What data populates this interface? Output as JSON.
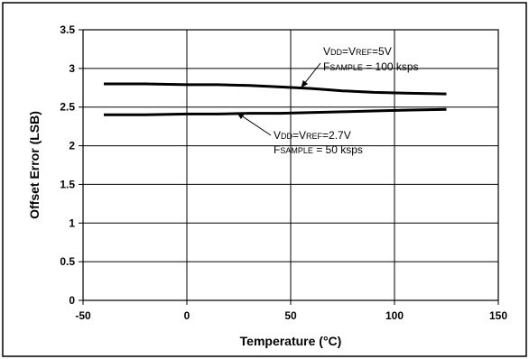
{
  "chart_data": {
    "type": "line",
    "title": "",
    "xlabel": "Temperature (°C)",
    "ylabel": "Offset Error (LSB)",
    "xlim": [
      -50,
      150
    ],
    "ylim": [
      0,
      3.5
    ],
    "x_ticks": [
      -50,
      0,
      50,
      100,
      150
    ],
    "y_ticks": [
      0,
      0.5,
      1,
      1.5,
      2,
      2.5,
      3,
      3.5
    ],
    "x_tick_labels": [
      "-50",
      "0",
      "50",
      "100",
      "150"
    ],
    "y_tick_labels": [
      "0",
      "0.5",
      "1",
      "1.5",
      "2",
      "2.5",
      "3",
      "3.5"
    ],
    "grid": true,
    "series": [
      {
        "name": "VDD=VREF=5V, FSAMPLE = 100 ksps",
        "x": [
          -40,
          -20,
          0,
          15,
          30,
          45,
          60,
          75,
          90,
          105,
          125
        ],
        "values": [
          2.8,
          2.8,
          2.79,
          2.79,
          2.78,
          2.76,
          2.74,
          2.71,
          2.69,
          2.68,
          2.67
        ]
      },
      {
        "name": "VDD=VREF=2.7V, FSAMPLE = 50 ksps",
        "x": [
          -40,
          -20,
          0,
          15,
          30,
          45,
          60,
          75,
          90,
          105,
          125
        ],
        "values": [
          2.4,
          2.4,
          2.41,
          2.41,
          2.42,
          2.42,
          2.43,
          2.44,
          2.45,
          2.46,
          2.47
        ]
      }
    ],
    "annotations": [
      {
        "series": 0,
        "line1": {
          "main1": "V",
          "sub1": "DD",
          "main2": "=V",
          "sub2": "REF",
          "main3": "=5V"
        },
        "line2": {
          "main1": "F",
          "sub1": "SAMPLE",
          "main2": " = 100 ksps"
        },
        "arrow_to": {
          "x": 55,
          "y": 2.75
        }
      },
      {
        "series": 1,
        "line1": {
          "main1": "V",
          "sub1": "DD",
          "main2": "=V",
          "sub2": "REF",
          "main3": "=2.7V"
        },
        "line2": {
          "main1": "F",
          "sub1": "SAMPLE",
          "main2": " = 50 ksps"
        },
        "arrow_to": {
          "x": 24,
          "y": 2.43
        }
      }
    ]
  }
}
